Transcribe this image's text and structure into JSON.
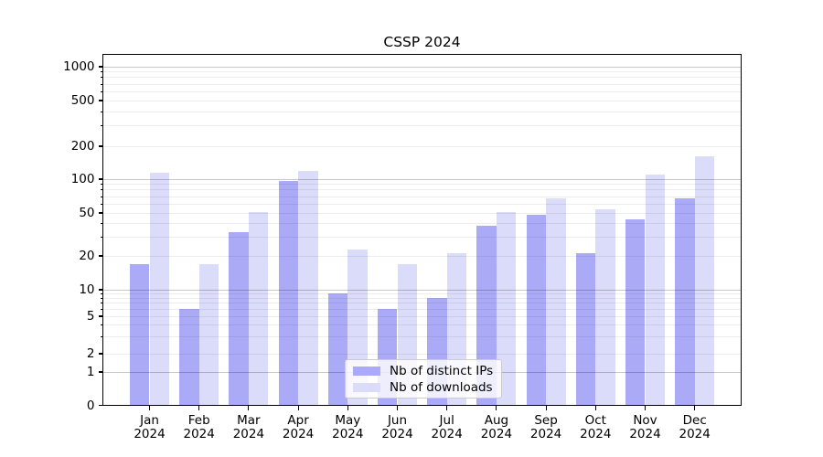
{
  "chart_data": {
    "type": "bar",
    "title": "CSSP 2024",
    "xlabel": "",
    "ylabel": "",
    "categories": [
      "Jan",
      "Feb",
      "Mar",
      "Apr",
      "May",
      "Jun",
      "Jul",
      "Aug",
      "Sep",
      "Oct",
      "Nov",
      "Dec"
    ],
    "x_year_label": "2024",
    "series": [
      {
        "name": "Nb of distinct IPs",
        "color": "#aaaaf6",
        "values": [
          17,
          6,
          33,
          97,
          9,
          6,
          8,
          38,
          48,
          21,
          44,
          68
        ]
      },
      {
        "name": "Nb of downloads",
        "color": "#dbdbfa",
        "values": [
          115,
          17,
          51,
          120,
          23,
          17,
          21,
          51,
          68,
          54,
          110,
          163
        ]
      }
    ],
    "yscale": "asinh-log",
    "yticks": [
      0,
      1,
      2,
      5,
      10,
      20,
      50,
      100,
      200,
      500,
      1000
    ],
    "ylim": [
      0,
      1300
    ],
    "grid": true,
    "legend_position": "lower center"
  }
}
